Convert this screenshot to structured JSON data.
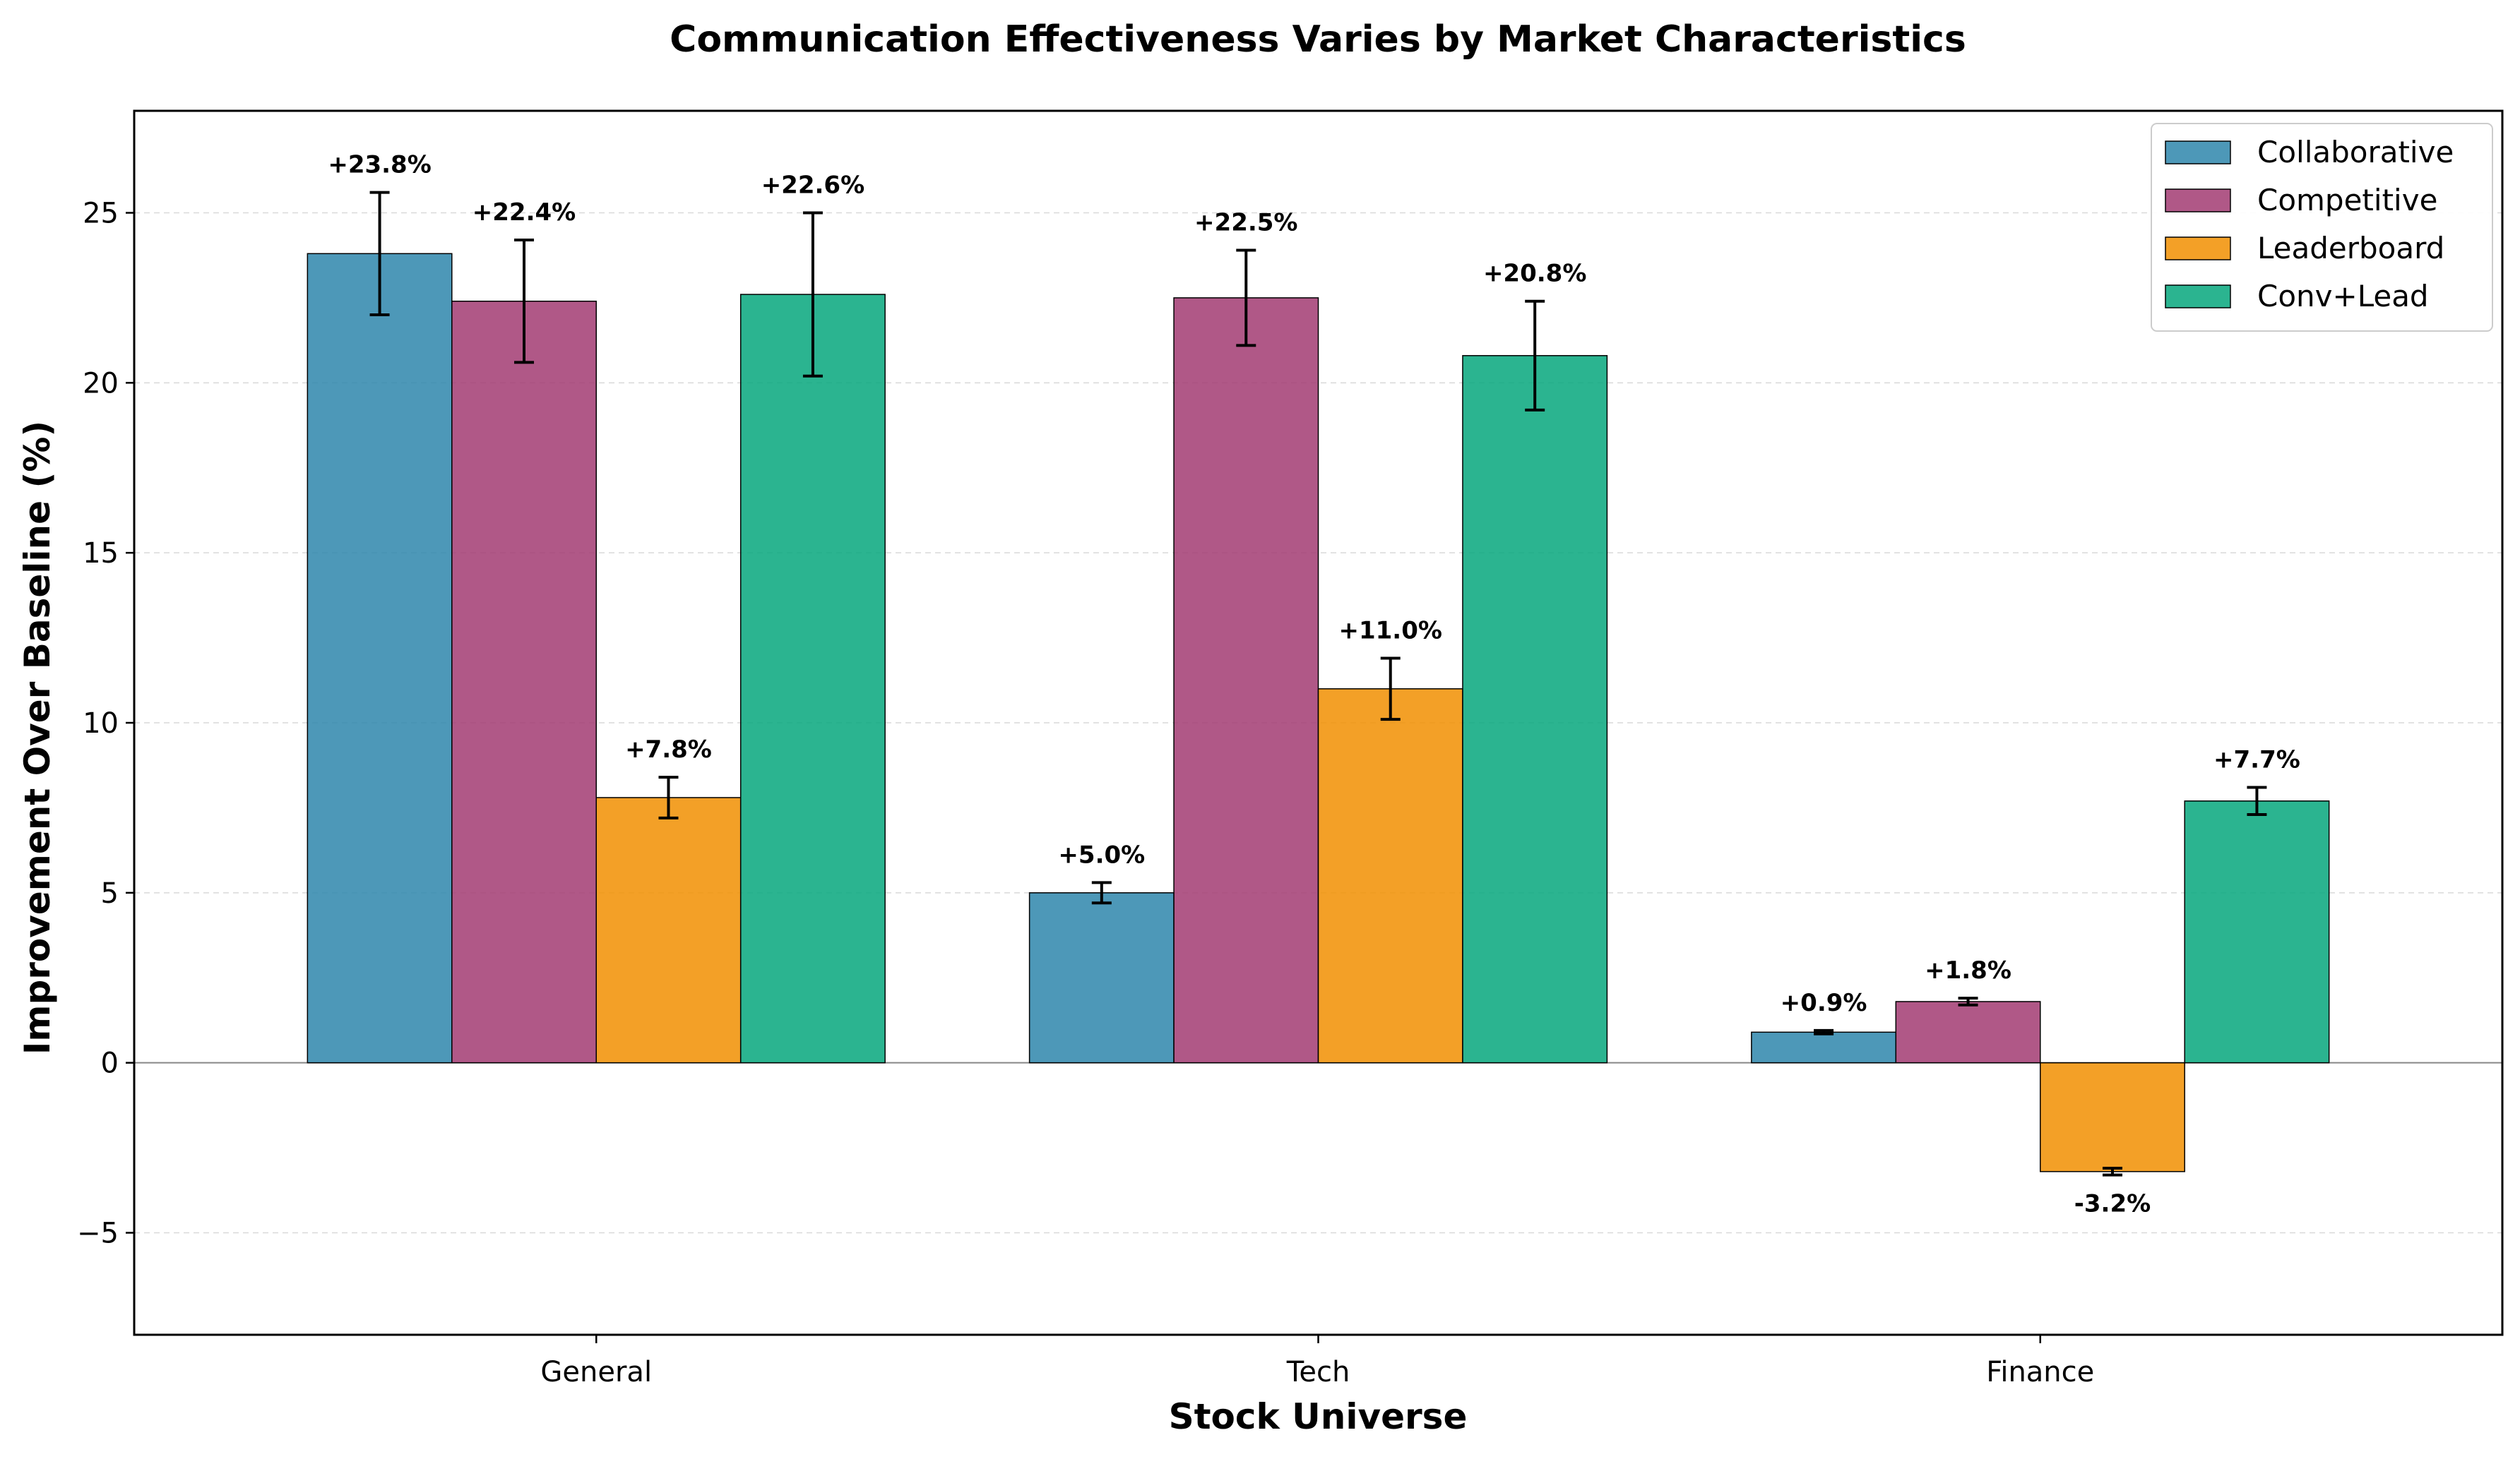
{
  "chart_data": {
    "type": "bar",
    "title": "Communication Effectiveness Varies by Market Characteristics",
    "xlabel": "Stock Universe",
    "ylabel": "Improvement Over Baseline (%)",
    "categories": [
      "General",
      "Tech",
      "Finance"
    ],
    "ylim": [
      -8,
      28
    ],
    "yticks": [
      -5,
      0,
      5,
      10,
      15,
      20,
      25
    ],
    "ytick_labels": [
      "−5",
      "0",
      "5",
      "10",
      "15",
      "20",
      "25"
    ],
    "grid": true,
    "legend_position": "top-right",
    "series": [
      {
        "name": "Collaborative",
        "color": "#2E86AB",
        "values": [
          23.8,
          5.0,
          0.9
        ],
        "errors": [
          1.8,
          0.3,
          0.05
        ],
        "labels": [
          "+23.8%",
          "+5.0%",
          "+0.9%"
        ]
      },
      {
        "name": "Competitive",
        "color": "#A23B72",
        "values": [
          22.4,
          22.5,
          1.8
        ],
        "errors": [
          1.8,
          1.4,
          0.1
        ],
        "labels": [
          "+22.4%",
          "+22.5%",
          "+1.8%"
        ]
      },
      {
        "name": "Leaderboard",
        "color": "#F18F01",
        "values": [
          7.8,
          11.0,
          -3.2
        ],
        "errors": [
          0.6,
          0.9,
          0.1
        ],
        "labels": [
          "+7.8%",
          "+11.0%",
          "-3.2%"
        ]
      },
      {
        "name": "Conv+Lead",
        "color": "#06A77D",
        "values": [
          22.6,
          20.8,
          7.7
        ],
        "errors": [
          2.4,
          1.6,
          0.4
        ],
        "labels": [
          "+22.6%",
          "+20.8%",
          "+7.7%"
        ]
      }
    ]
  }
}
